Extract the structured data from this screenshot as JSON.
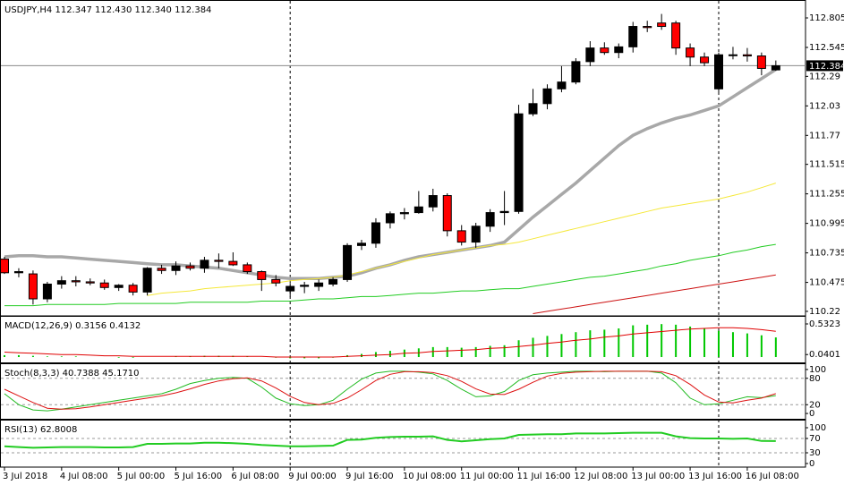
{
  "chart_data": [
    {
      "type": "candlestick",
      "title": "USDJPY,H4  112.347 112.430 112.340 112.384",
      "categories": [
        "3 Jul 2018",
        null,
        null,
        null,
        "4 Jul 08:00",
        null,
        null,
        null,
        "5 Jul 00:00",
        null,
        null,
        null,
        "5 Jul 16:00",
        null,
        null,
        null,
        "6 Jul 08:00",
        null,
        null,
        null,
        "9 Jul 00:00",
        null,
        null,
        null,
        "9 Jul 16:00",
        null,
        null,
        null,
        "10 Jul 08:00",
        null,
        null,
        null,
        "11 Jul 00:00",
        null,
        null,
        null,
        "11 Jul 16:00",
        null,
        null,
        null,
        "12 Jul 08:00",
        null,
        null,
        null,
        "13 Jul 00:00",
        null,
        null,
        null,
        "13 Jul 16:00",
        null,
        null,
        null,
        "16 Jul 08:00",
        null,
        null
      ],
      "open": [
        110.68,
        110.56,
        110.55,
        110.33,
        110.46,
        110.49,
        110.48,
        110.47,
        110.43,
        110.45,
        110.39,
        110.6,
        110.58,
        110.62,
        110.6,
        110.67,
        110.66,
        110.63,
        110.57,
        110.5,
        110.4,
        110.44,
        110.44,
        110.46,
        110.5,
        110.8,
        110.82,
        111.0,
        111.08,
        111.09,
        111.14,
        111.24,
        110.93,
        110.83,
        110.97,
        111.09,
        111.1,
        111.96,
        112.05,
        112.18,
        112.24,
        112.42,
        112.54,
        112.5,
        112.55,
        112.73,
        112.76,
        112.76,
        112.54,
        112.46,
        112.18,
        112.48,
        112.48,
        112.47,
        112.347
      ],
      "high": [
        110.7,
        110.6,
        110.58,
        110.48,
        110.53,
        110.53,
        110.51,
        110.5,
        110.46,
        110.47,
        110.61,
        110.63,
        110.66,
        110.65,
        110.7,
        110.73,
        110.74,
        110.65,
        110.58,
        110.54,
        110.47,
        110.48,
        110.5,
        110.52,
        110.82,
        110.85,
        111.04,
        111.1,
        111.13,
        111.28,
        111.3,
        111.26,
        110.98,
        111.0,
        111.12,
        111.28,
        112.04,
        112.18,
        112.22,
        112.38,
        112.45,
        112.6,
        112.59,
        112.58,
        112.77,
        112.78,
        112.84,
        112.78,
        112.58,
        112.5,
        112.5,
        112.55,
        112.54,
        112.5,
        112.43
      ],
      "low": [
        110.55,
        110.52,
        110.28,
        110.3,
        110.42,
        110.44,
        110.45,
        110.41,
        110.4,
        110.36,
        110.36,
        110.55,
        110.54,
        110.58,
        110.56,
        110.6,
        110.62,
        110.55,
        110.4,
        110.44,
        110.35,
        110.38,
        110.4,
        110.44,
        110.48,
        110.76,
        110.78,
        110.95,
        111.03,
        111.08,
        111.1,
        110.88,
        110.8,
        110.78,
        110.92,
        110.98,
        111.08,
        111.94,
        112.0,
        112.15,
        112.22,
        112.38,
        112.48,
        112.45,
        112.5,
        112.68,
        112.7,
        112.48,
        112.38,
        112.38,
        112.15,
        112.44,
        112.42,
        112.3,
        112.34
      ],
      "close": [
        110.56,
        110.57,
        110.33,
        110.46,
        110.49,
        110.48,
        110.47,
        110.43,
        110.45,
        110.39,
        110.6,
        110.58,
        110.62,
        110.6,
        110.67,
        110.66,
        110.63,
        110.57,
        110.5,
        110.47,
        110.44,
        110.45,
        110.47,
        110.5,
        110.8,
        110.82,
        111.0,
        111.08,
        111.09,
        111.14,
        111.24,
        110.93,
        110.83,
        110.97,
        111.09,
        111.1,
        111.96,
        112.05,
        112.18,
        112.24,
        112.42,
        112.54,
        112.5,
        112.55,
        112.73,
        112.72,
        112.73,
        112.54,
        112.46,
        112.41,
        112.48,
        112.48,
        112.47,
        112.36,
        112.384
      ],
      "up_color": "#000000",
      "down_color": "#ff0000",
      "series": [
        {
          "color": "#a8a8a8",
          "values": [
            110.7,
            110.71,
            110.71,
            110.7,
            110.7,
            110.69,
            110.68,
            110.67,
            110.66,
            110.65,
            110.64,
            110.63,
            110.63,
            110.62,
            110.61,
            110.6,
            110.58,
            110.56,
            110.54,
            110.52,
            110.51,
            110.51,
            110.51,
            110.52,
            110.53,
            110.56,
            110.6,
            110.63,
            110.67,
            110.7,
            110.72,
            110.74,
            110.76,
            110.78,
            110.8,
            110.83,
            110.94,
            111.05,
            111.15,
            111.25,
            111.35,
            111.46,
            111.57,
            111.68,
            111.77,
            111.83,
            111.88,
            111.92,
            111.95,
            111.99,
            112.03,
            112.11,
            112.19,
            112.27,
            112.35
          ]
        },
        {
          "color": "#f5e83a",
          "values": [
            null,
            null,
            null,
            null,
            null,
            null,
            null,
            null,
            null,
            null,
            110.36,
            110.38,
            110.39,
            110.4,
            110.42,
            110.43,
            110.44,
            110.45,
            110.46,
            110.47,
            110.49,
            110.5,
            110.51,
            110.52,
            110.54,
            110.57,
            110.6,
            110.63,
            110.66,
            110.69,
            110.72,
            110.74,
            110.76,
            110.78,
            110.8,
            110.81,
            110.83,
            110.86,
            110.89,
            110.92,
            110.95,
            110.98,
            111.01,
            111.04,
            111.07,
            111.1,
            111.13,
            111.15,
            111.17,
            111.19,
            111.21,
            111.24,
            111.27,
            111.31,
            111.35
          ]
        },
        {
          "color": "#22cc22",
          "values": [
            110.27,
            110.27,
            110.27,
            110.28,
            110.28,
            110.28,
            110.28,
            110.28,
            110.29,
            110.29,
            110.29,
            110.29,
            110.29,
            110.3,
            110.3,
            110.3,
            110.3,
            110.3,
            110.31,
            110.31,
            110.31,
            110.32,
            110.33,
            110.33,
            110.34,
            110.35,
            110.35,
            110.36,
            110.37,
            110.38,
            110.38,
            110.39,
            110.4,
            110.4,
            110.41,
            110.42,
            110.42,
            110.44,
            110.46,
            110.48,
            110.5,
            110.52,
            110.53,
            110.55,
            110.57,
            110.59,
            110.62,
            110.64,
            110.67,
            110.69,
            110.71,
            110.74,
            110.76,
            110.79,
            110.81
          ]
        },
        {
          "color": "#cc1111",
          "values": [
            null,
            null,
            null,
            null,
            null,
            null,
            null,
            null,
            null,
            null,
            null,
            null,
            null,
            null,
            null,
            null,
            null,
            null,
            null,
            null,
            null,
            null,
            null,
            null,
            null,
            null,
            null,
            null,
            null,
            null,
            null,
            null,
            null,
            null,
            null,
            null,
            null,
            110.2,
            110.22,
            110.24,
            110.26,
            110.28,
            110.3,
            110.32,
            110.34,
            110.36,
            110.38,
            110.4,
            110.42,
            110.44,
            110.46,
            110.48,
            110.5,
            110.52,
            110.54
          ]
        }
      ],
      "ylim": [
        110.188,
        112.947
      ],
      "yticks": [
        112.805,
        112.545,
        112.29,
        112.03,
        111.77,
        111.515,
        111.255,
        110.995,
        110.735,
        110.475,
        110.22
      ],
      "last_price": 112.384
    },
    {
      "type": "macd",
      "title": "MACD(12,26,9) 0.3156 0.4132",
      "histogram": {
        "color": "#00c800",
        "values": [
          0.03,
          0.03,
          0.02,
          0.01,
          0.01,
          0.01,
          0.0,
          0.0,
          -0.01,
          -0.01,
          0.0,
          0.0,
          0.01,
          0.01,
          0.02,
          0.02,
          0.02,
          0.01,
          0.0,
          -0.01,
          -0.02,
          -0.02,
          -0.02,
          -0.01,
          0.03,
          0.05,
          0.08,
          0.1,
          0.12,
          0.14,
          0.16,
          0.16,
          0.15,
          0.16,
          0.18,
          0.19,
          0.27,
          0.31,
          0.34,
          0.37,
          0.4,
          0.43,
          0.44,
          0.46,
          0.51,
          0.52,
          0.53,
          0.52,
          0.49,
          0.46,
          0.42,
          0.4,
          0.38,
          0.35,
          0.3156
        ]
      },
      "signal": {
        "color": "#e00000",
        "values": [
          0.08,
          0.07,
          0.06,
          0.05,
          0.04,
          0.04,
          0.03,
          0.02,
          0.02,
          0.01,
          0.01,
          0.01,
          0.01,
          0.01,
          0.01,
          0.01,
          0.01,
          0.01,
          0.01,
          0.0,
          0.0,
          0.0,
          0.0,
          0.0,
          0.01,
          0.02,
          0.03,
          0.04,
          0.06,
          0.07,
          0.09,
          0.1,
          0.11,
          0.12,
          0.14,
          0.15,
          0.17,
          0.19,
          0.22,
          0.24,
          0.27,
          0.29,
          0.32,
          0.34,
          0.37,
          0.39,
          0.41,
          0.43,
          0.45,
          0.46,
          0.47,
          0.47,
          0.46,
          0.44,
          0.4132
        ]
      },
      "ylim": [
        -0.086,
        0.633
      ],
      "yticks": [
        0.5323,
        0.0401
      ]
    },
    {
      "type": "line",
      "title": "Stoch(8,3,3) 40.7388 45.1710",
      "series": [
        {
          "color": "#22bb22",
          "values": [
            45,
            20,
            8,
            6,
            10,
            15,
            20,
            25,
            30,
            35,
            40,
            45,
            55,
            68,
            75,
            80,
            82,
            80,
            60,
            35,
            22,
            18,
            20,
            30,
            55,
            78,
            92,
            96,
            96,
            94,
            90,
            75,
            55,
            38,
            40,
            50,
            75,
            88,
            92,
            94,
            96,
            96,
            95,
            96,
            96,
            96,
            92,
            70,
            35,
            20,
            22,
            30,
            38,
            36,
            40.7388
          ]
        },
        {
          "color": "#dd1111",
          "values": [
            55,
            40,
            25,
            12,
            10,
            11,
            15,
            20,
            25,
            30,
            35,
            40,
            47,
            56,
            66,
            74,
            79,
            81,
            74,
            58,
            39,
            25,
            20,
            23,
            35,
            54,
            75,
            89,
            95,
            95,
            93,
            86,
            73,
            56,
            44,
            43,
            55,
            71,
            85,
            91,
            94,
            95,
            96,
            96,
            96,
            96,
            95,
            86,
            66,
            42,
            26,
            24,
            30,
            35,
            45.171
          ]
        }
      ],
      "ylim": [
        -10,
        110
      ],
      "yticks": [
        100,
        80,
        20,
        0
      ],
      "levels": [
        80,
        20
      ]
    },
    {
      "type": "line",
      "title": "RSI(13) 62.8008",
      "series": [
        {
          "color": "#22cc22",
          "values": [
            48,
            46,
            44,
            45,
            46,
            46,
            46,
            45,
            45,
            46,
            55,
            55,
            56,
            56,
            58,
            58,
            57,
            55,
            52,
            50,
            48,
            48,
            49,
            50,
            66,
            67,
            72,
            74,
            75,
            75,
            76,
            66,
            62,
            65,
            68,
            70,
            80,
            81,
            82,
            82,
            84,
            84,
            84,
            85,
            86,
            86,
            86,
            76,
            71,
            70,
            70,
            69,
            70,
            63,
            62.8008
          ]
        }
      ],
      "ylim": [
        -7.5,
        117.5
      ],
      "yticks": [
        100,
        70,
        30,
        0
      ],
      "levels": [
        70,
        30
      ]
    }
  ]
}
